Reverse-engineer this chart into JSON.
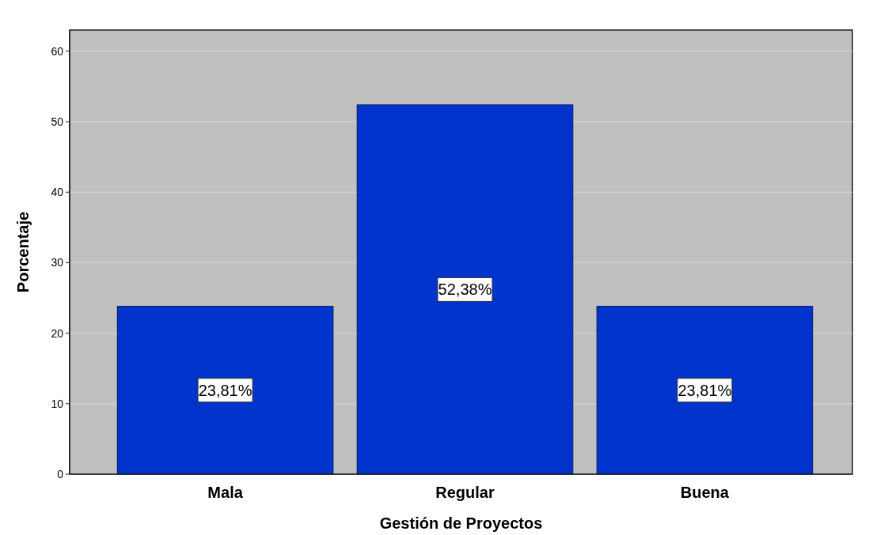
{
  "chart_data": {
    "type": "bar",
    "xlabel": "Gestión de Proyectos",
    "ylabel": "Porcentaje",
    "categories": [
      "Mala",
      "Regular",
      "Buena"
    ],
    "values": [
      23.81,
      52.38,
      23.81
    ],
    "value_labels": [
      "23,81%",
      "52,38%",
      "23,81%"
    ],
    "color": "#0033cc",
    "ylim": [
      0,
      63
    ],
    "yticks": [
      0,
      10,
      20,
      30,
      40,
      50,
      60
    ],
    "grid": "y"
  }
}
